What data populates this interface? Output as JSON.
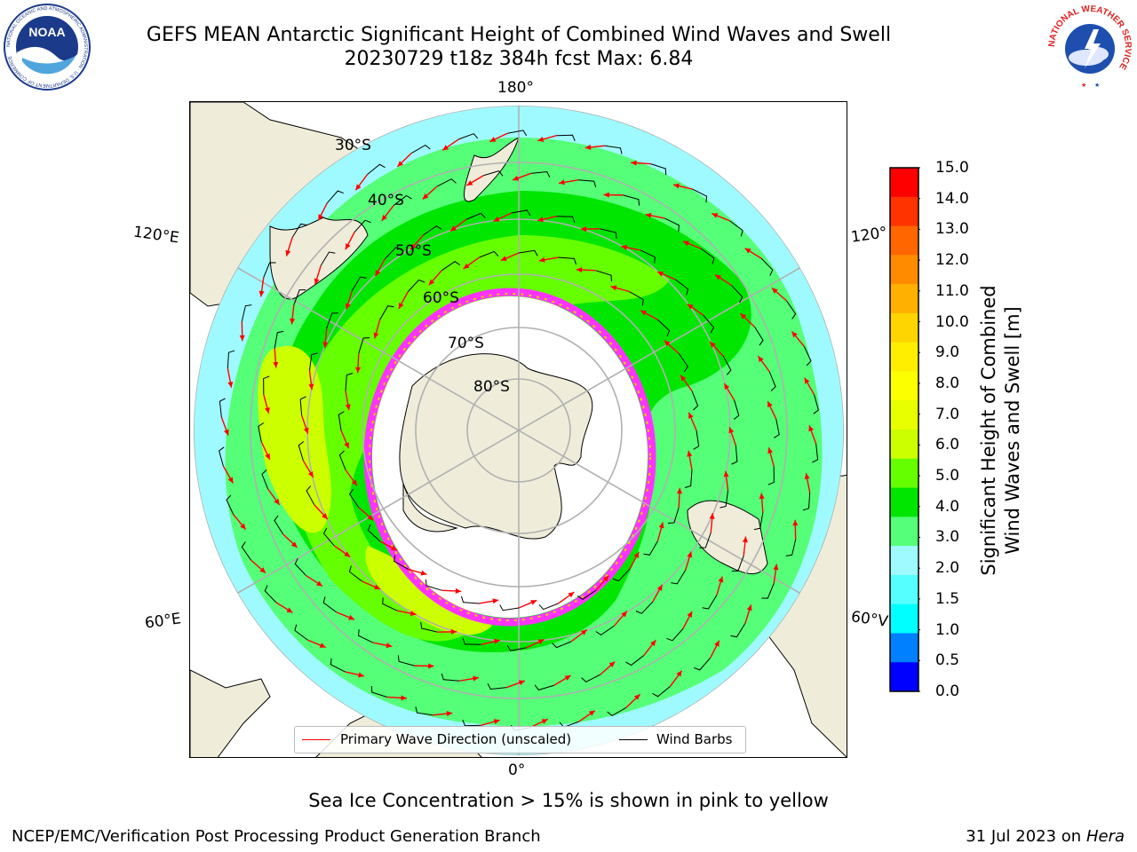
{
  "header": {
    "title_line1": "GEFS MEAN Antarctic Significant Height of Combined Wind Waves and Swell",
    "title_line2": "20230729 t18z 384h fcst   Max: 6.84"
  },
  "logos": {
    "left": {
      "name": "noaa-logo",
      "text": "NOAA",
      "ring_text": "NATIONAL OCEANIC AND ATMOSPHERIC ADMINISTRATION · U.S. DEPARTMENT OF COMMERCE"
    },
    "right": {
      "name": "national-weather-service-logo",
      "ring_text": "NATIONAL WEATHER SERVICE"
    }
  },
  "map": {
    "projection": "south-polar-stereographic",
    "lon_labels": {
      "top": "180°",
      "bottom": "0°",
      "left_upper": "120°E",
      "left_lower": "60°E",
      "right_upper": "120°",
      "right_lower": "60°V"
    },
    "lat_labels": [
      "30°S",
      "40°S",
      "50°S",
      "60°S",
      "70°S",
      "80°S"
    ],
    "colors": {
      "land": "#efedda",
      "band_0_1": "#0000ff",
      "band_1_1_5": "#00ffff",
      "band_2_3": "#9ffaff",
      "band_3_4": "#55ff77",
      "band_4_5": "#00e600",
      "band_5_6": "#66ff00",
      "band_6_7": "#ccff00",
      "band_7_8": "#eaff00",
      "sea_ice": "#ff33ff",
      "wave_arrow": "#ff0000",
      "wind_barb": "#000000",
      "grid": "#b0b0b0"
    }
  },
  "colorbar": {
    "label_line1": "Significant Height of Combined",
    "label_line2": "Wind Waves and Swell [m]",
    "ticks": [
      "15.0",
      "14.0",
      "13.0",
      "12.0",
      "11.0",
      "10.0",
      "9.0",
      "8.0",
      "7.0",
      "6.0",
      "5.0",
      "4.0",
      "3.0",
      "2.0",
      "1.5",
      "1.0",
      "0.5",
      "0.0"
    ],
    "colors_top_to_bottom": [
      "#ff0000",
      "#ff3300",
      "#ff6600",
      "#ff8c00",
      "#ffb000",
      "#ffd500",
      "#ffee00",
      "#fbff00",
      "#e8ff00",
      "#ccff00",
      "#66ff00",
      "#00e600",
      "#55ff77",
      "#9ffaff",
      "#55ffff",
      "#00ffff",
      "#0080ff",
      "#0000ff"
    ]
  },
  "legend": {
    "wave_label": "Primary Wave Direction (unscaled)",
    "wind_label": "Wind Barbs"
  },
  "note": "Sea Ice Concentration > 15% is shown in pink to yellow",
  "footer": {
    "left": "NCEP/EMC/Verification Post Processing Product Generation Branch",
    "right_date": "31 Jul 2023 on ",
    "right_host": "Hera"
  }
}
